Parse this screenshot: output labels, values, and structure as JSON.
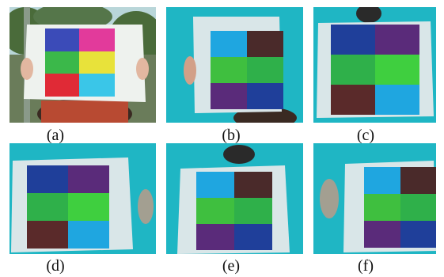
{
  "panels": [
    {
      "id": "a",
      "label": "(a)",
      "setting": "above-water"
    },
    {
      "id": "b",
      "label": "(b)",
      "setting": "underwater"
    },
    {
      "id": "c",
      "label": "(c)",
      "setting": "underwater"
    },
    {
      "id": "d",
      "label": "(d)",
      "setting": "underwater"
    },
    {
      "id": "e",
      "label": "(e)",
      "setting": "underwater"
    },
    {
      "id": "f",
      "label": "(f)",
      "setting": "underwater"
    }
  ],
  "colors": {
    "water": "#1fb6c4",
    "water_dark": "#0f8f9c",
    "board": "#dfe9ea",
    "sky": "#b9d6d9",
    "foliage": "#4a6b3a",
    "patch_a": [
      "#3b4bb8",
      "#e23a9b",
      "#3bb84a",
      "#e8e23a",
      "#e02a36",
      "#3ac6e8"
    ],
    "patch_underwater": [
      "#1f3f9a",
      "#5a2b7a",
      "#2fb04a",
      "#3fcf3f",
      "#5a2a2a",
      "#1fa6e0"
    ]
  }
}
